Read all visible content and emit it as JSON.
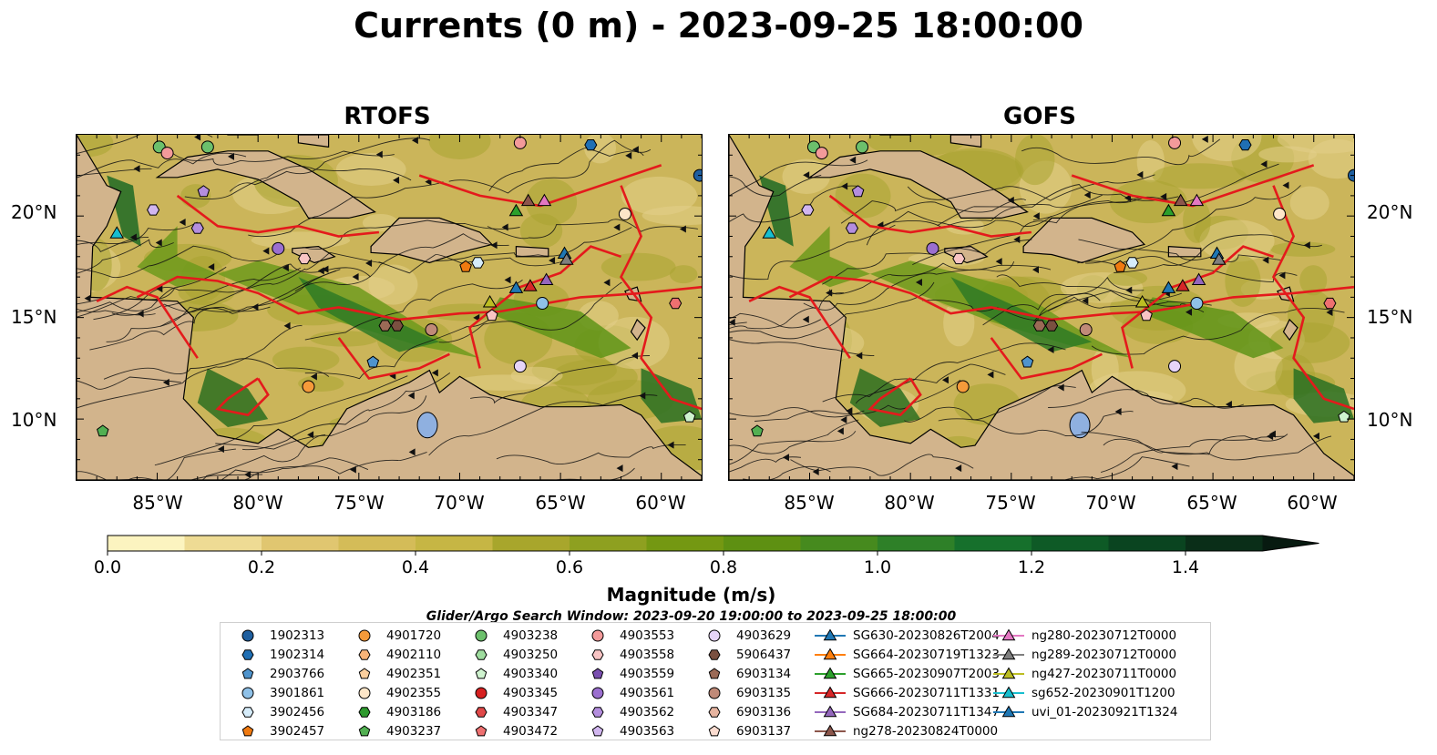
{
  "title": "Currents (0 m) - 2023-09-25 18:00:00",
  "panels": [
    {
      "title": "RTOFS"
    },
    {
      "title": "GOFS"
    }
  ],
  "map": {
    "lat_labels": [
      "20°N",
      "15°N",
      "10°N"
    ],
    "lon_labels": [
      "85°W",
      "80°W",
      "75°W",
      "70°W",
      "65°W",
      "60°W"
    ],
    "lon_range": [
      -89,
      -58
    ],
    "lat_range": [
      7,
      24
    ]
  },
  "colorbar": {
    "label": "Magnitude (m/s)",
    "ticks": [
      "0.0",
      "0.2",
      "0.4",
      "0.6",
      "0.8",
      "1.0",
      "1.2",
      "1.4"
    ],
    "range": [
      0,
      1.5
    ],
    "colors": [
      "#fcf4c0",
      "#eedb94",
      "#e0c670",
      "#d4bc58",
      "#c6b644",
      "#a8a62c",
      "#8ea020",
      "#749812",
      "#5e9012",
      "#468a1e",
      "#2e8028",
      "#16702c",
      "#0e5a26",
      "#0a4420",
      "#0a2e18"
    ]
  },
  "search_window": "Glider/Argo Search Window: 2023-09-20 19:00:00 to 2023-09-25 18:00:00",
  "legend": [
    {
      "label": "1902313",
      "marker": "circle",
      "color": "#1f5f9f"
    },
    {
      "label": "1902314",
      "marker": "hexagon",
      "color": "#1f6fb4"
    },
    {
      "label": "2903766",
      "marker": "pentagon",
      "color": "#4f94cd"
    },
    {
      "label": "3901861",
      "marker": "circle",
      "color": "#8fc1e8"
    },
    {
      "label": "3902456",
      "marker": "hexagon",
      "color": "#d6ecfa"
    },
    {
      "label": "3902457",
      "marker": "pentagon",
      "color": "#f07a10"
    },
    {
      "label": "4901720",
      "marker": "circle",
      "color": "#f59a3a"
    },
    {
      "label": "4902110",
      "marker": "hexagon",
      "color": "#f8b478"
    },
    {
      "label": "4902351",
      "marker": "pentagon",
      "color": "#fbcf9e"
    },
    {
      "label": "4902355",
      "marker": "circle",
      "color": "#fde6c8"
    },
    {
      "label": "4903186",
      "marker": "hexagon",
      "color": "#2e9a2e"
    },
    {
      "label": "4903237",
      "marker": "pentagon",
      "color": "#52b052"
    },
    {
      "label": "4903238",
      "marker": "circle",
      "color": "#6cc06c"
    },
    {
      "label": "4903250",
      "marker": "hexagon",
      "color": "#9edc9e"
    },
    {
      "label": "4903340",
      "marker": "pentagon",
      "color": "#cff3cf"
    },
    {
      "label": "4903345",
      "marker": "circle",
      "color": "#d62020"
    },
    {
      "label": "4903347",
      "marker": "hexagon",
      "color": "#e04848"
    },
    {
      "label": "4903472",
      "marker": "pentagon",
      "color": "#ee7070"
    },
    {
      "label": "4903553",
      "marker": "circle",
      "color": "#f39a9a"
    },
    {
      "label": "4903558",
      "marker": "hexagon",
      "color": "#f8c4c4"
    },
    {
      "label": "4903559",
      "marker": "pentagon",
      "color": "#7a4fb0"
    },
    {
      "label": "4903561",
      "marker": "circle",
      "color": "#9b6fcf"
    },
    {
      "label": "4903562",
      "marker": "hexagon",
      "color": "#b48ede"
    },
    {
      "label": "4903563",
      "marker": "pentagon",
      "color": "#d1b6ef"
    },
    {
      "label": "4903629",
      "marker": "circle",
      "color": "#e6d4f8"
    },
    {
      "label": "5906437",
      "marker": "hexagon",
      "color": "#7a5040"
    },
    {
      "label": "6903134",
      "marker": "pentagon",
      "color": "#9b6a56"
    },
    {
      "label": "6903135",
      "marker": "circle",
      "color": "#c08a78"
    },
    {
      "label": "6903136",
      "marker": "hexagon",
      "color": "#e6b4a0"
    },
    {
      "label": "6903137",
      "marker": "pentagon",
      "color": "#fbdcd0"
    },
    {
      "label": "SG630-20230826T2004",
      "marker": "triangle",
      "color": "#1f77b4"
    },
    {
      "label": "SG664-20230719T1323",
      "marker": "triangle",
      "color": "#ff7f0e"
    },
    {
      "label": "SG665-20230907T2003",
      "marker": "triangle",
      "color": "#2ca02c"
    },
    {
      "label": "SG666-20230711T1331",
      "marker": "triangle",
      "color": "#d62728"
    },
    {
      "label": "SG684-20230711T1347",
      "marker": "triangle",
      "color": "#9467bd"
    },
    {
      "label": "ng278-20230824T0000",
      "marker": "triangle",
      "color": "#8c564b"
    },
    {
      "label": "ng280-20230712T0000",
      "marker": "triangle",
      "color": "#e377c2"
    },
    {
      "label": "ng289-20230712T0000",
      "marker": "triangle",
      "color": "#7f7f7f"
    },
    {
      "label": "ng427-20230711T0000",
      "marker": "triangle",
      "color": "#bcbd22"
    },
    {
      "label": "sg652-20230901T1200",
      "marker": "triangle",
      "color": "#17becf"
    },
    {
      "label": "uvi_01-20230921T1324",
      "marker": "triangle",
      "color": "#1f77b4"
    }
  ]
}
